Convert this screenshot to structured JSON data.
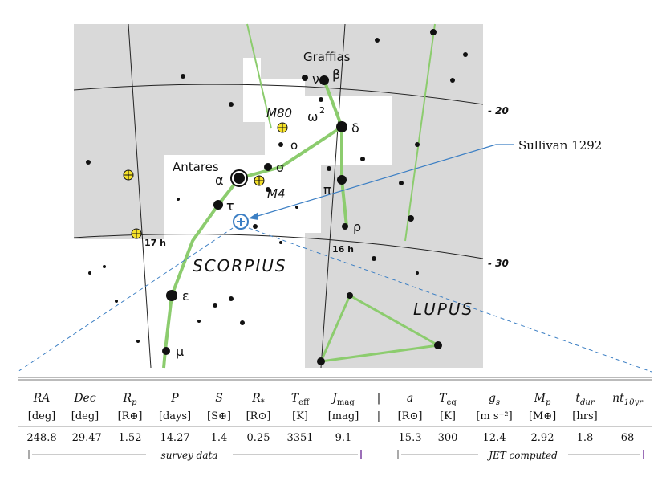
{
  "map": {
    "constellations": [
      "SCORPIUS",
      "LUPUS"
    ],
    "star_labels": [
      "Graffias",
      "ν",
      "β",
      "ω",
      "2",
      "δ",
      "o",
      "σ",
      "α",
      "Antares",
      "π",
      "τ",
      "ρ",
      "ε",
      "μ"
    ],
    "cluster_labels": [
      "M80",
      "M4"
    ],
    "ra_labels": [
      "17 h",
      "16 h"
    ],
    "dec_labels": [
      "- 20",
      "- 30"
    ],
    "target_label": "Sullivan 1292",
    "colors": {
      "sky_gray": "#d9d9d9",
      "figure_line": "#8ccc6e",
      "pointer": "#3c7fc4",
      "cluster_fill": "#f5e12a"
    }
  },
  "table": {
    "headers": [
      "RA",
      "Dec",
      "R",
      "P",
      "S",
      "R",
      "T",
      "J",
      "|",
      "a",
      "T",
      "g",
      "M",
      "t",
      "nt"
    ],
    "header_subs": [
      "",
      "",
      "p",
      "",
      "",
      "*",
      "eff",
      "mag",
      "",
      "",
      "eq",
      "s",
      "p",
      "dur",
      "10yr"
    ],
    "units": [
      "[deg]",
      "[deg]",
      "[R⊕]",
      "[days]",
      "[S⊕]",
      "[R⊙]",
      "[K]",
      "[mag]",
      "|",
      "[R⊙]",
      "[K]",
      "[m s⁻²]",
      "[M⊕]",
      "[hrs]",
      ""
    ],
    "values": [
      "248.8",
      "-29.47",
      "1.52",
      "14.27",
      "1.4",
      "0.25",
      "3351",
      "9.1",
      "",
      "15.3",
      "300",
      "12.4",
      "2.92",
      "1.8",
      "68"
    ],
    "captions": [
      "survey data",
      "JET computed"
    ]
  }
}
